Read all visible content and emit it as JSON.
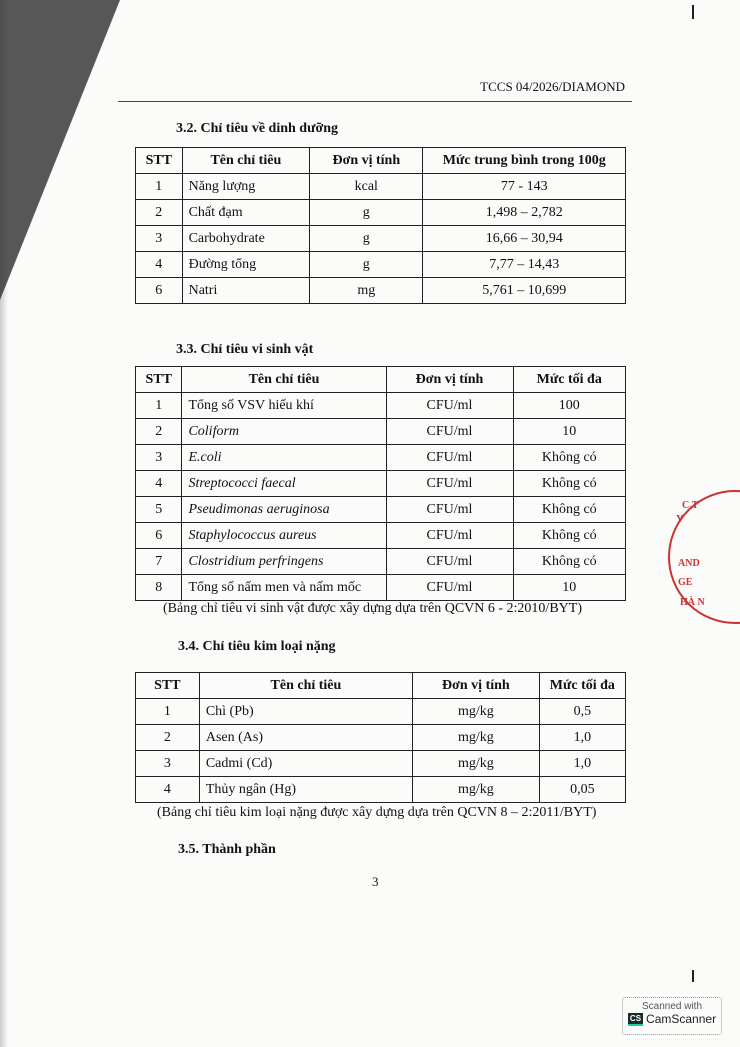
{
  "header": {
    "code": "TCCS 04/2026/DIAMOND"
  },
  "s32": {
    "title": "3.2.  Chỉ tiêu về dinh dưỡng",
    "headers": [
      "STT",
      "Tên chỉ tiêu",
      "Đơn vị tính",
      "Mức trung bình trong 100g"
    ],
    "rows": [
      [
        "1",
        "Năng lượng",
        "kcal",
        "77 - 143"
      ],
      [
        "2",
        "Chất đạm",
        "g",
        "1,498 – 2,782"
      ],
      [
        "3",
        "Carbohydrate",
        "g",
        "16,66 – 30,94"
      ],
      [
        "4",
        "Đường tổng",
        "g",
        "7,77 – 14,43"
      ],
      [
        "6",
        "Natri",
        "mg",
        "5,761 – 10,699"
      ]
    ]
  },
  "s33": {
    "title": "3.3. Chỉ tiêu vi sinh vật",
    "headers": [
      "STT",
      "Tên chỉ tiêu",
      "Đơn vị tính",
      "Mức tối đa"
    ],
    "rows": [
      [
        "1",
        "Tổng số VSV hiếu khí",
        "CFU/ml",
        "100"
      ],
      [
        "2",
        "Coliform",
        "CFU/ml",
        "10"
      ],
      [
        "3",
        "E.coli",
        "CFU/ml",
        "Không có"
      ],
      [
        "4",
        "Streptococci faecal",
        "CFU/ml",
        "Không có"
      ],
      [
        "5",
        "Pseudimonas aeruginosa",
        "CFU/ml",
        "Không có"
      ],
      [
        "6",
        "Staphylococcus aureus",
        "CFU/ml",
        "Không có"
      ],
      [
        "7",
        "Clostridium perfringens",
        "CFU/ml",
        "Không có"
      ],
      [
        "8",
        "Tổng số nấm men và nấm mốc",
        "CFU/ml",
        "10"
      ]
    ],
    "italic": [
      false,
      true,
      true,
      true,
      true,
      true,
      true,
      false
    ],
    "caption": "(Bảng chỉ tiêu vi sinh vật được xây dựng dựa trên QCVN 6 - 2:2010/BYT)"
  },
  "s34": {
    "title": "3.4. Chỉ tiêu kim loại nặng",
    "headers": [
      "STT",
      "Tên chỉ tiêu",
      "Đơn vị tính",
      "Mức tối đa"
    ],
    "rows": [
      [
        "1",
        "Chì (Pb)",
        "mg/kg",
        "0,5"
      ],
      [
        "2",
        "Asen (As)",
        "mg/kg",
        "1,0"
      ],
      [
        "3",
        "Cadmi (Cd)",
        "mg/kg",
        "1,0"
      ],
      [
        "4",
        "Thủy ngân (Hg)",
        "mg/kg",
        "0,05"
      ]
    ],
    "caption": "(Bảng chỉ tiêu kim loại nặng được xây dựng dựa trên QCVN 8 – 2:2011/BYT)"
  },
  "s35": {
    "title": "3.5. Thành phần"
  },
  "page_number": "3",
  "stamp": {
    "text": [
      "Y",
      "C.T",
      "AND",
      "GE",
      "HÀ N"
    ],
    "color": "#cc3333"
  },
  "watermark": {
    "line1": "Scanned with",
    "line2": "CamScanner",
    "logo": "CS"
  }
}
